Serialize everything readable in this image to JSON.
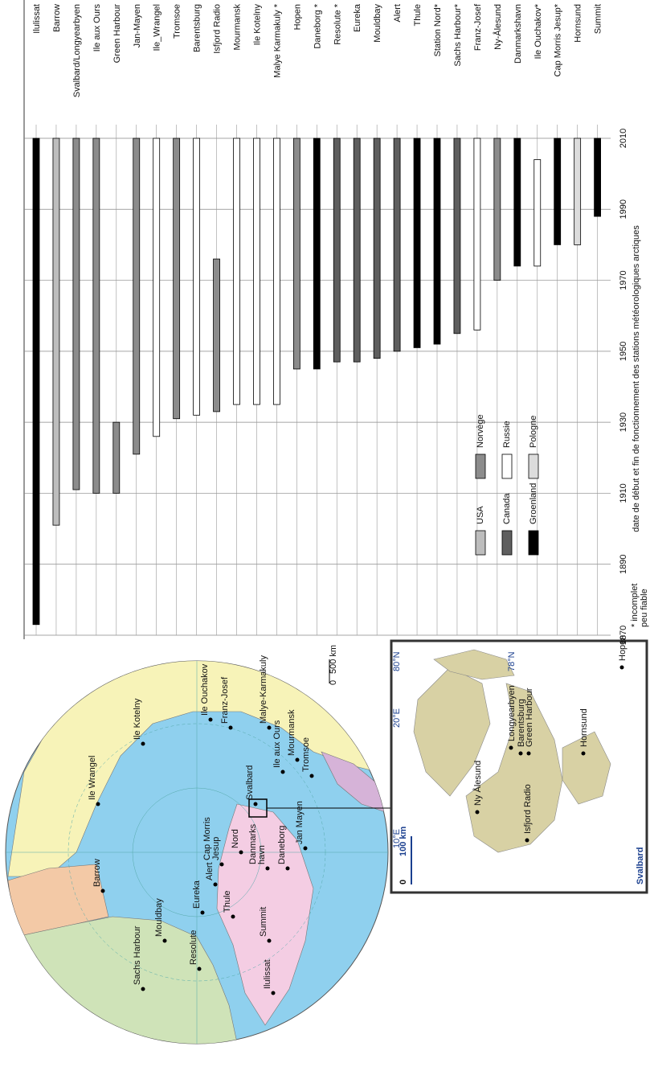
{
  "chart_data": {
    "type": "range-bar",
    "title": "date de début et fin de fonctionnement des stations météorologiques arctiques",
    "categories": [
      "Ilulissat",
      "Barrow",
      "Svalbard/Longyearbyen",
      "Ile aux Ours",
      "Green Harbour",
      "Jan-Mayen",
      "Ile_Wrangel",
      "Tromsoe",
      "Barentsburg",
      "Isfjord Radio",
      "Mourmansk",
      "Ile Kotelny",
      "Malye Karmakuly *",
      "Hopen",
      "Daneborg *",
      "Resolute *",
      "Eureka",
      "Mouldbay",
      "Alert",
      "Thule",
      "Station Nord*",
      "Sachs Harbour*",
      "Franz-Josef",
      "Ny-Ålesund",
      "Danmarkshavn",
      "Ile Ouchakov*",
      "Cap Morris Jesup*",
      "Hornsund",
      "Summit"
    ],
    "start": [
      1873,
      1901,
      1911,
      1910,
      1910,
      1921,
      1926,
      1931,
      1932,
      1933,
      1935,
      1935,
      1935,
      1945,
      1945,
      1947,
      1947,
      1948,
      1950,
      1951,
      1952,
      1955,
      1956,
      1970,
      1974,
      1974,
      1980,
      1980,
      1988
    ],
    "end": [
      2010,
      2010,
      2010,
      2010,
      1930,
      2010,
      2010,
      2010,
      2010,
      1976,
      2010,
      2010,
      2010,
      2010,
      2010,
      2010,
      2010,
      2010,
      2010,
      2010,
      2010,
      2010,
      2010,
      2010,
      2010,
      2004,
      2010,
      2010,
      2010
    ],
    "group": [
      "Groenland",
      "USA",
      "Norvège",
      "Norvège",
      "Norvège",
      "Norvège",
      "Russie",
      "Norvège",
      "Russie",
      "Norvège",
      "Russie",
      "Russie",
      "Russie",
      "Norvège",
      "Groenland",
      "Canada",
      "Canada",
      "Canada",
      "Canada",
      "Groenland",
      "Groenland",
      "Canada",
      "Russie",
      "Norvège",
      "Groenland",
      "Russie",
      "Groenland",
      "Pologne",
      "Groenland"
    ],
    "series": [
      {
        "name": "USA",
        "color": "#bdbdbd"
      },
      {
        "name": "Canada",
        "color": "#5f5f5f"
      },
      {
        "name": "Groenland",
        "color": "#000000"
      },
      {
        "name": "Norvège",
        "color": "#8c8c8c"
      },
      {
        "name": "Russie",
        "color": "#ffffff"
      },
      {
        "name": "Pologne",
        "color": "#dcdcdc"
      }
    ],
    "xlim": [
      1870,
      2010
    ],
    "xticks": [
      1870,
      1890,
      1910,
      1930,
      1950,
      1970,
      1990,
      2010
    ],
    "grid": true,
    "footnote": [
      "* incomplet",
      "peu fiable"
    ]
  },
  "map": {
    "labels": [
      [
        "Barrow"
      ],
      [
        "Ile Wrangel"
      ],
      [
        "Ile Kotelny"
      ],
      [
        "Ile Ouchakov"
      ],
      [
        "Franz-Josef"
      ],
      [
        "Malye-Karmakuly"
      ],
      [
        "Svalbard"
      ],
      [
        "Ile aux Ours"
      ],
      [
        "Mourmansk"
      ],
      [
        "Tromsoe"
      ],
      [
        "Jan Mayen"
      ],
      [
        "Danmarks",
        "havn"
      ],
      [
        "Daneborg"
      ],
      [
        "Summit"
      ],
      [
        "Ilulissat"
      ],
      [
        "Nord"
      ],
      [
        "Cap Morris",
        "Jesup"
      ],
      [
        "Alert"
      ],
      [
        "Thule"
      ],
      [
        "Eureka"
      ],
      [
        "Resolute"
      ],
      [
        "Mouldbay"
      ],
      [
        "Sachs Harbour"
      ]
    ],
    "scale": [
      "0",
      "500 km"
    ]
  },
  "inset": {
    "title": "Svalbard",
    "scale": [
      "0",
      "100 km"
    ],
    "graticule": [
      "10°E",
      "20°E",
      "80°N",
      "78°N"
    ],
    "labels": [
      "Ny Ålesund",
      "Longyearbyen",
      "Barentsburg",
      "Green Harbour",
      "Isfjord Radio",
      "Hornsund",
      "Hopen"
    ]
  }
}
